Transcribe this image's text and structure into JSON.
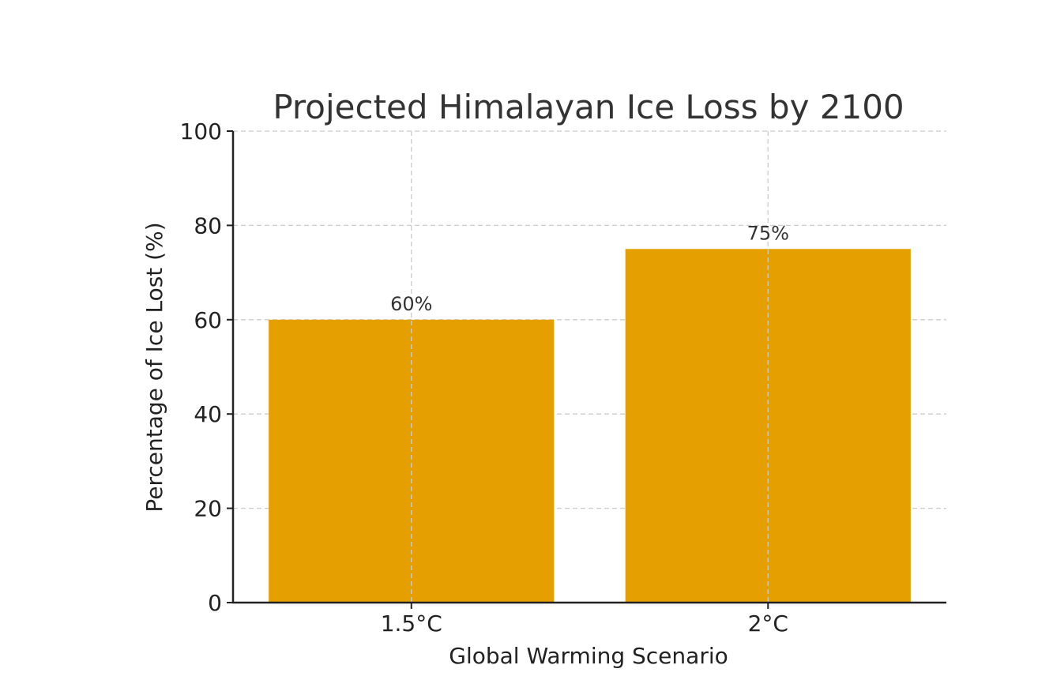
{
  "chart_data": {
    "type": "bar",
    "title": "Projected Himalayan Ice Loss by 2100",
    "xlabel": "Global Warming Scenario",
    "ylabel": "Percentage of Ice Lost (%)",
    "categories": [
      "1.5°C",
      "2°C"
    ],
    "values": [
      60,
      75
    ],
    "value_labels": [
      "60%",
      "75%"
    ],
    "ylim": [
      0,
      100
    ],
    "yticks": [
      0,
      20,
      40,
      60,
      80,
      100
    ],
    "ytick_labels": [
      "0",
      "20",
      "40",
      "60",
      "80",
      "100"
    ],
    "grid": true,
    "legend": "none",
    "bar_color": "#e5a000"
  }
}
